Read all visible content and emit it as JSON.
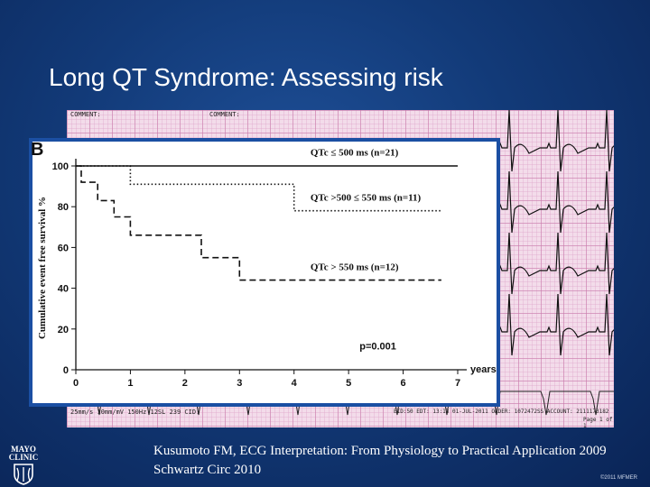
{
  "slide": {
    "title": "Long QT Syndrome: Assessing risk",
    "citation_line1": "Kusumoto FM, ECG Interpretation: From Physiology to Practical Application 2009",
    "citation_line2": "Schwartz Circ 2010",
    "copyright": "©2011 MFMER",
    "logo_line1": "MAYO",
    "logo_line2": "CLINIC"
  },
  "ecg": {
    "top_left": "COMMENT:",
    "top_mid": "COMMENT:",
    "bottom_left": "25mm/s   10mm/mV   150Hz   12SL 239   CID:",
    "bottom_right": "EID:50 EDT: 13:13 01-JUL-2011 ORDER: 1072472SS ACCOUNT: 2111173182",
    "page": "Page 1 of 1"
  },
  "chart_data": {
    "type": "line",
    "panel_label": "B",
    "ylabel": "Cumulative event free survival %",
    "xlabel": "years",
    "xlim": [
      0,
      7
    ],
    "ylim": [
      0,
      100
    ],
    "x_ticks": [
      "0",
      "1",
      "2",
      "3",
      "4",
      "5",
      "6",
      "7"
    ],
    "y_ticks": [
      "0",
      "20",
      "40",
      "60",
      "80",
      "100"
    ],
    "annotation": "p=0.001",
    "series": [
      {
        "name": "QTc ≤ 500 ms (n=21)",
        "style": "solid",
        "x": [
          0,
          7
        ],
        "y": [
          100,
          100
        ]
      },
      {
        "name": "QTc >500 ≤ 550 ms (n=11)",
        "style": "dotted",
        "x": [
          0,
          1,
          1,
          4,
          4,
          6.7
        ],
        "y": [
          100,
          100,
          91,
          91,
          78,
          78
        ]
      },
      {
        "name": "QTc > 550 ms (n=12)",
        "style": "dashed",
        "x": [
          0,
          0.1,
          0.1,
          0.4,
          0.4,
          0.7,
          0.7,
          1.0,
          1.0,
          2.3,
          2.3,
          3.0,
          3.0,
          6.7
        ],
        "y": [
          100,
          100,
          92,
          92,
          83,
          83,
          75,
          75,
          66,
          66,
          55,
          55,
          44,
          44
        ]
      }
    ],
    "label_positions": [
      {
        "x": 4.3,
        "y": 105
      },
      {
        "x": 4.3,
        "y": 83
      },
      {
        "x": 4.3,
        "y": 49
      }
    ]
  }
}
